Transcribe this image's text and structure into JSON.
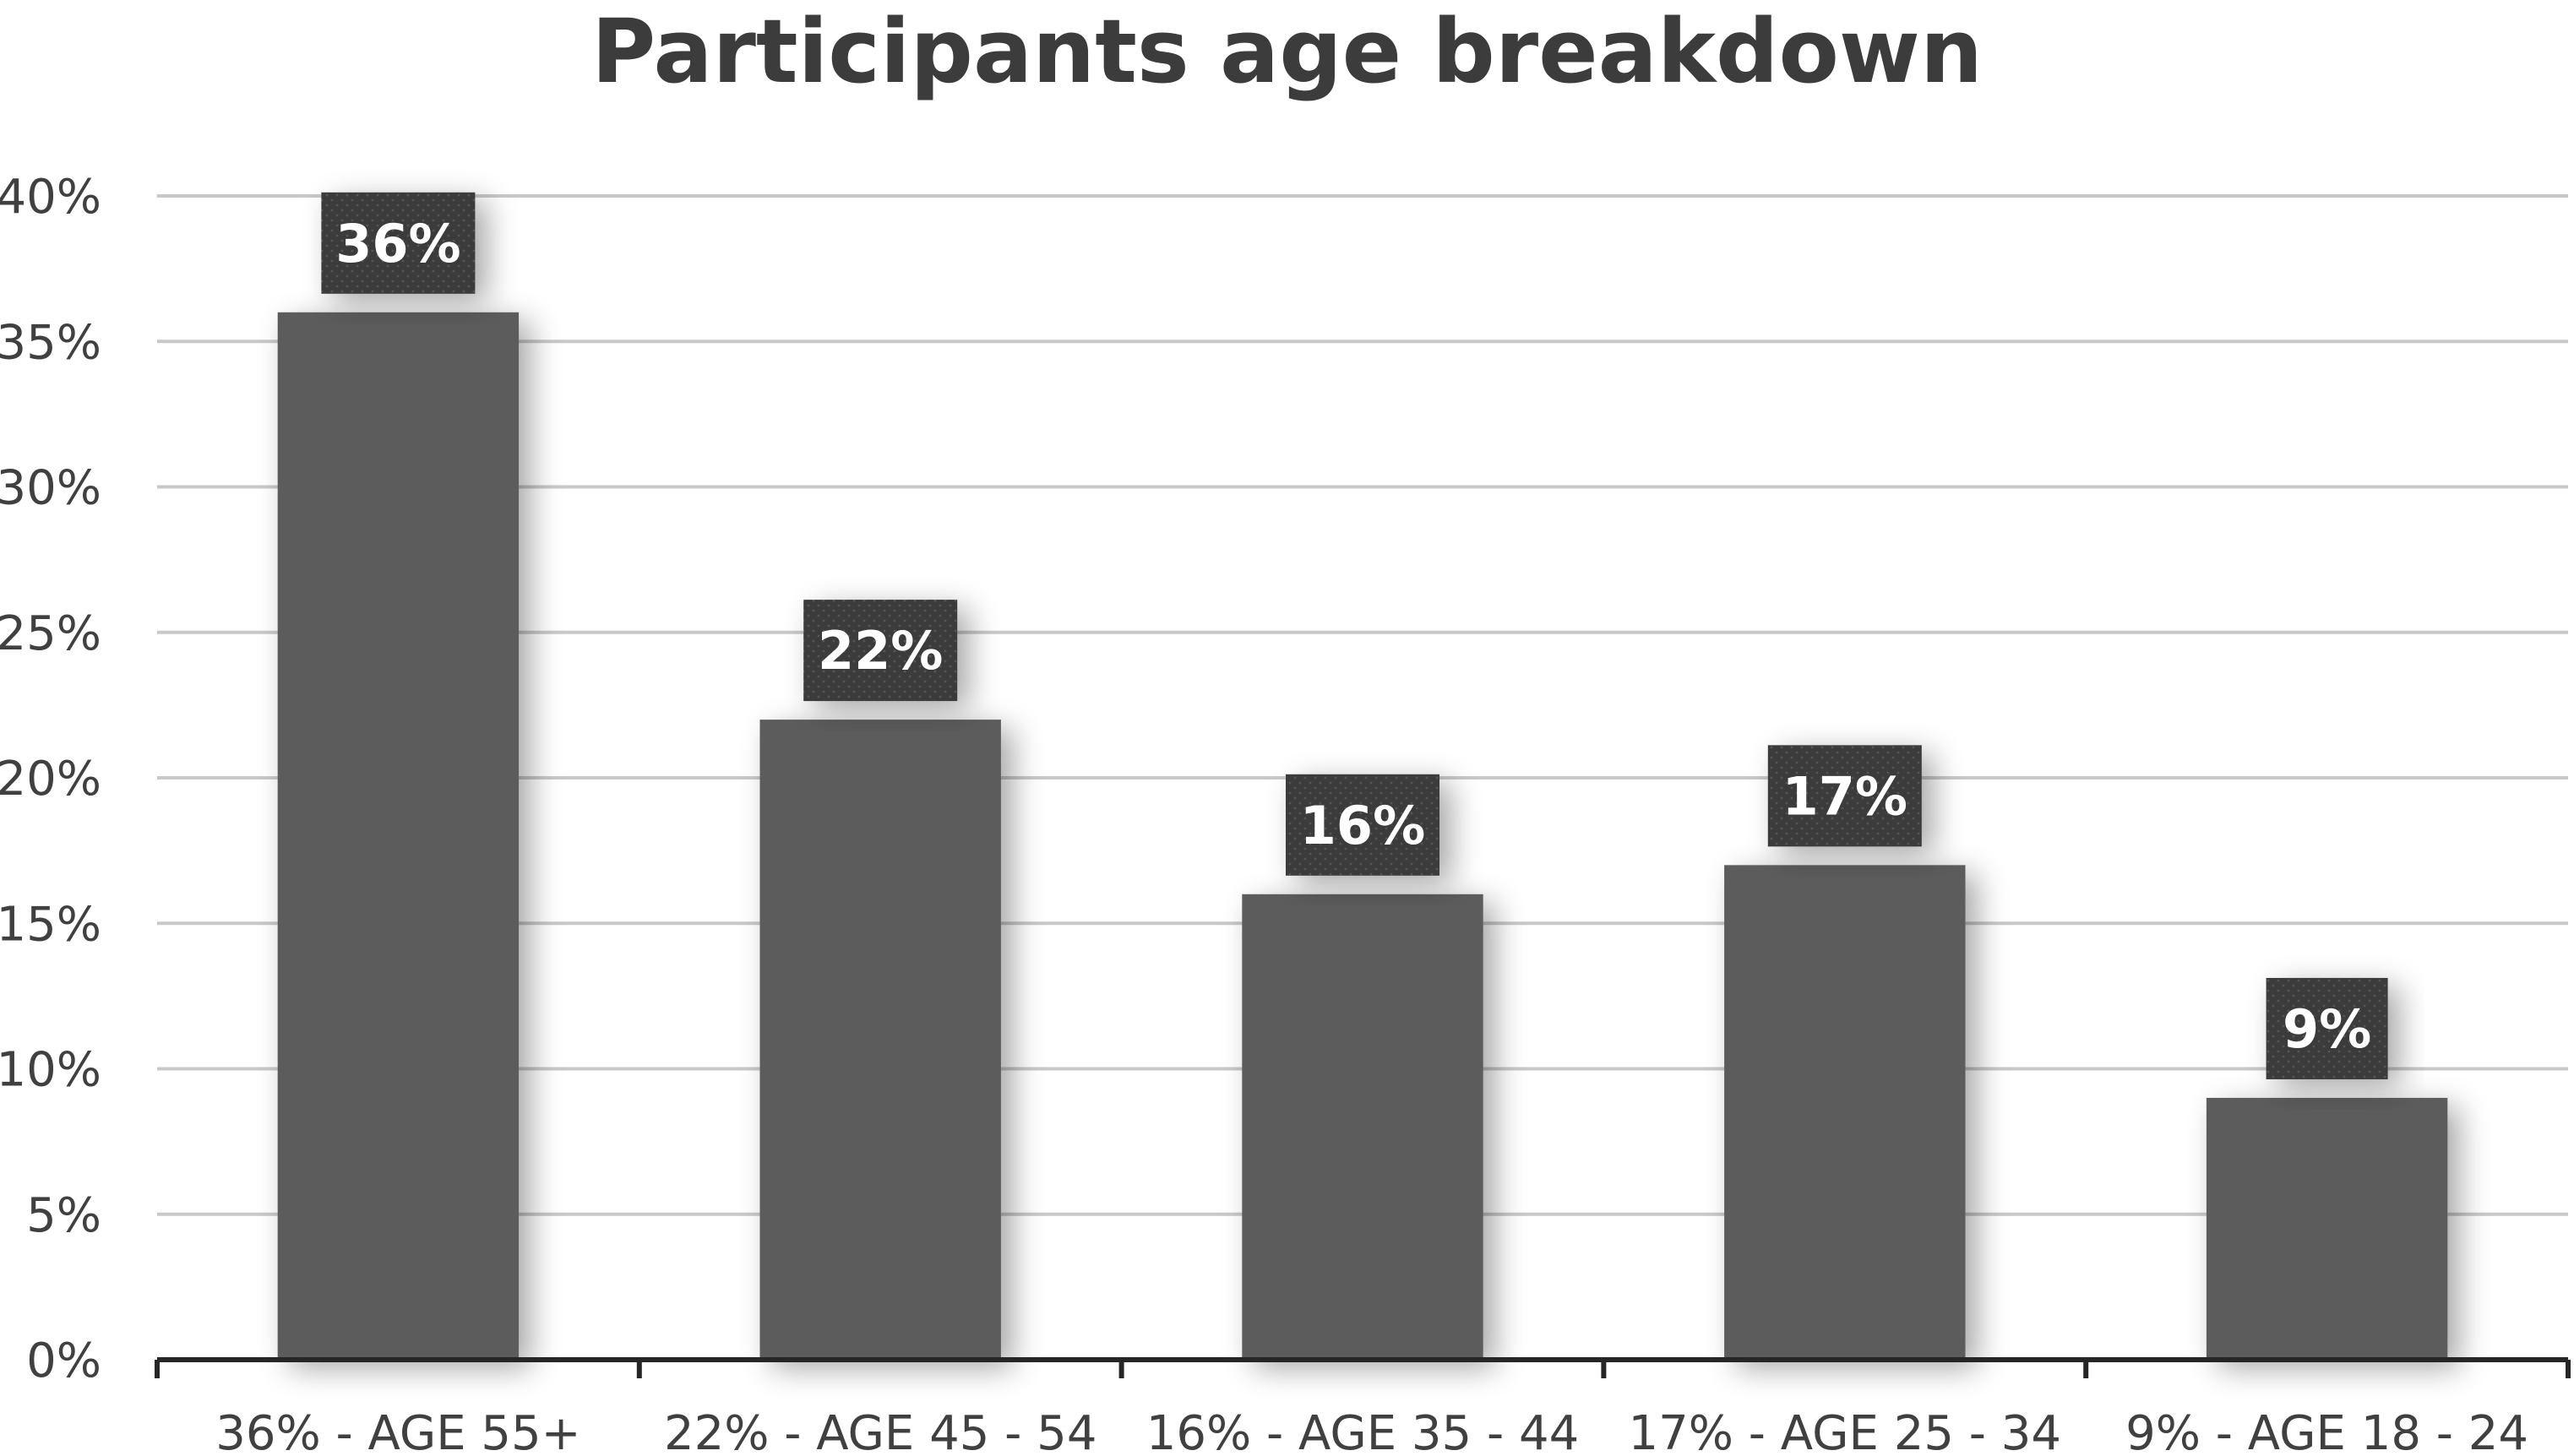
{
  "chart_data": {
    "type": "bar",
    "title": "Participants age breakdown",
    "xlabel": "",
    "ylabel": "",
    "categories": [
      "36% - AGE 55+",
      "22% - AGE 45 - 54",
      "16% - AGE 35 - 44",
      "17% - AGE 25 - 34",
      "9% - AGE 18 - 24"
    ],
    "values": [
      36,
      22,
      16,
      17,
      9
    ],
    "data_labels": [
      "36%",
      "22%",
      "16%",
      "17%",
      "9%"
    ],
    "ylim": [
      0,
      40
    ],
    "yticks": [
      0,
      5,
      10,
      15,
      20,
      25,
      30,
      35,
      40
    ],
    "ytick_labels": [
      "0%",
      "5%",
      "10%",
      "15%",
      "20%",
      "25%",
      "30%",
      "35%",
      "40%"
    ],
    "grid": true,
    "legend": "none",
    "colors": {
      "bar": "#5c5c5c",
      "label_box": "#3b3b3b",
      "grid": "#c8c8c8",
      "axis": "#262626",
      "text": "#404040"
    }
  }
}
